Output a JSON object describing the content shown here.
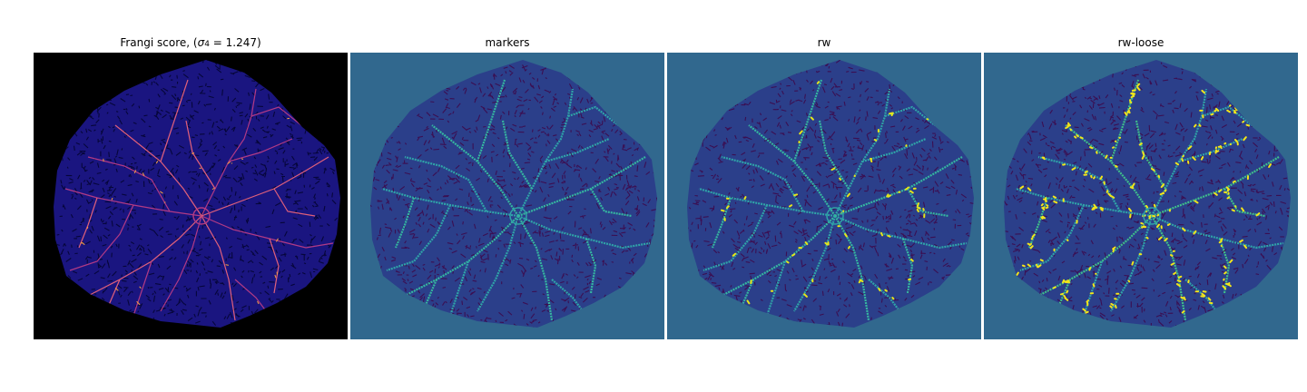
{
  "figure": {
    "panels": [
      {
        "id": "frangi",
        "title_prefix": "Frangi score, (",
        "title_sigma": "σ",
        "title_sub": "4",
        "title_suffix": " = 1.247)",
        "colormap": "plasma",
        "background": "#000000",
        "blob_fill": "#1a1580",
        "texture_color": "#06063a",
        "vessel_colors": [
          "#b13a84",
          "#e0607a",
          "#f0a040"
        ]
      },
      {
        "id": "markers",
        "title": "markers",
        "colormap": "viridis",
        "background": "#31688e",
        "blob_fill": "#2b3f8a",
        "texture_color": "#3b0f52",
        "vessel_colors": [
          "#2fa4a8",
          "#35b7a0"
        ]
      },
      {
        "id": "rw",
        "title": "rw",
        "colormap": "viridis",
        "background": "#31688e",
        "blob_fill": "#2b3f8a",
        "texture_color": "#3b0f52",
        "vessel_colors": [
          "#2fa4a8",
          "#35b7a0",
          "#e6e51a"
        ]
      },
      {
        "id": "rw-loose",
        "title": "rw-loose",
        "colormap": "viridis",
        "background": "#31688e",
        "blob_fill": "#2b3f8a",
        "texture_color": "#3b0f52",
        "vessel_colors": [
          "#2fa4a8",
          "#3fbf8a",
          "#f2e51a"
        ]
      }
    ]
  }
}
